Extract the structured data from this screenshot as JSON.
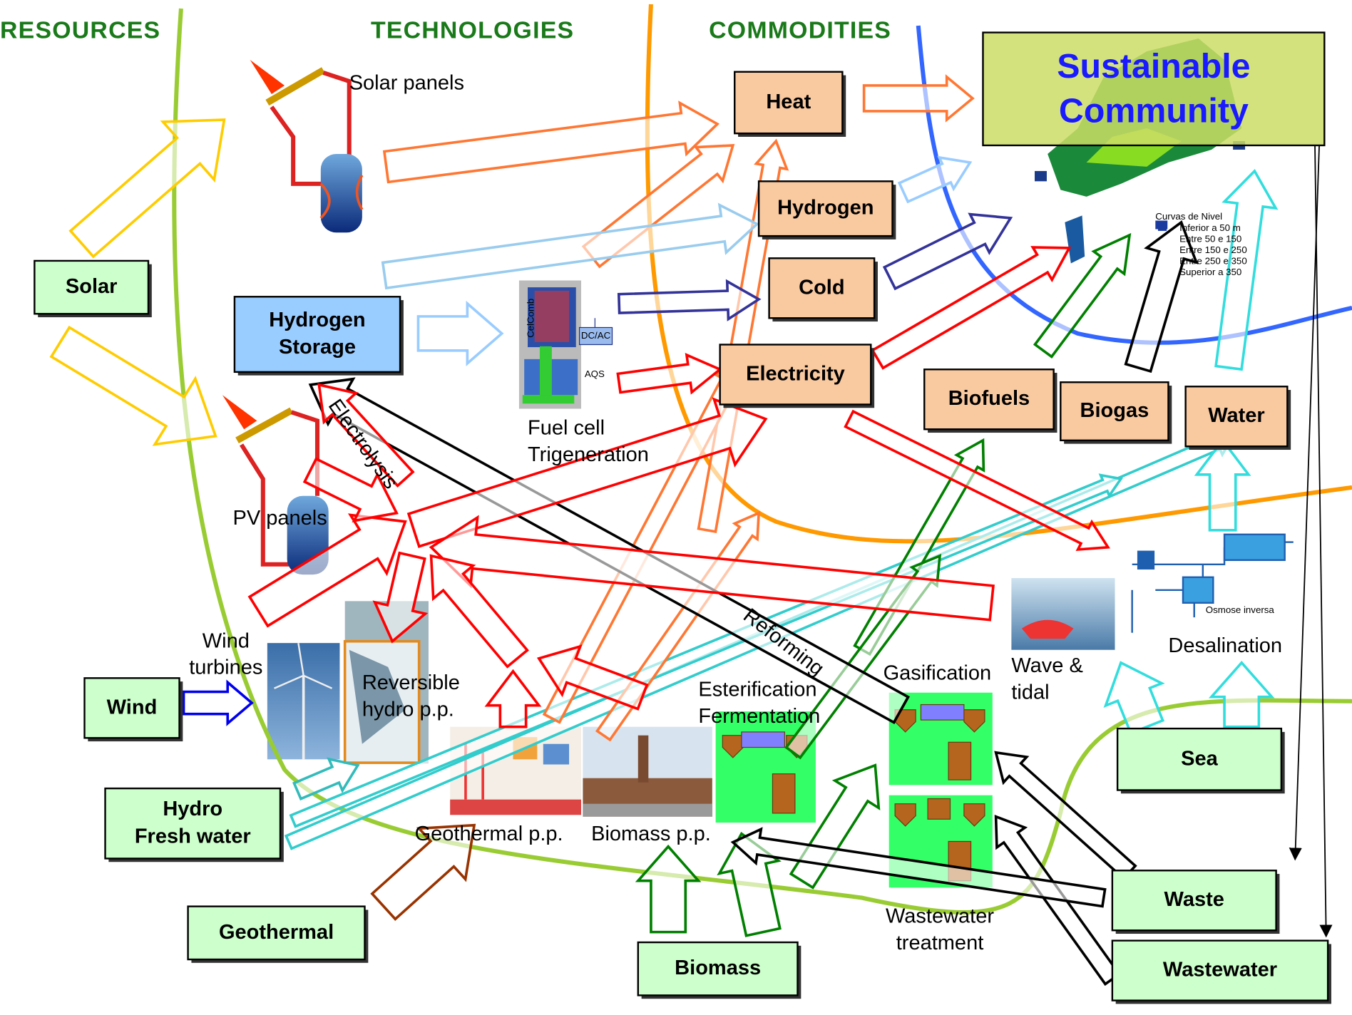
{
  "columns": [
    "RESOURCES",
    "TECHNOLOGIES",
    "COMMODITIES"
  ],
  "goal": [
    "Sustainable",
    "Community"
  ],
  "resources": [
    [
      "Solar"
    ],
    [
      "Wind"
    ],
    [
      "Hydro",
      "Fresh water"
    ],
    [
      "Geothermal"
    ],
    [
      "Biomass"
    ],
    [
      "Sea"
    ],
    [
      "Waste"
    ],
    [
      "Wastewater"
    ]
  ],
  "storage": [
    "Hydrogen",
    "Storage"
  ],
  "commodities": [
    [
      "Heat"
    ],
    [
      "Hydrogen"
    ],
    [
      "Cold"
    ],
    [
      "Electricity"
    ],
    [
      "Biofuels"
    ],
    [
      "Biogas"
    ],
    [
      "Water"
    ]
  ],
  "technologies": [
    [
      "Solar panels"
    ],
    [
      "PV panels"
    ],
    [
      "Wind",
      "turbines"
    ],
    [
      "Reversible",
      "hydro p.p."
    ],
    [
      "Geothermal p.p."
    ],
    [
      "Biomass p.p."
    ],
    [
      "Esterification",
      "Fermentation"
    ],
    [
      "Gasification"
    ],
    [
      "Wastewater",
      "treatment"
    ],
    [
      "Fuel cell",
      "Trigeneration"
    ],
    [
      "Wave &",
      "tidal"
    ],
    [
      "Desalination"
    ]
  ],
  "processes": [
    "Electrolysis",
    "Reforming"
  ],
  "small_labels": [
    "CelComb",
    "DC/AC",
    "AQS",
    "Osmose inversa"
  ],
  "map_legend": [
    "Curvas de Nivel",
    "Inferior a 50 m",
    "Entre 50 e 150",
    "Entre 150 e 250",
    "Entre 250 e 350",
    "Superior a 350"
  ]
}
